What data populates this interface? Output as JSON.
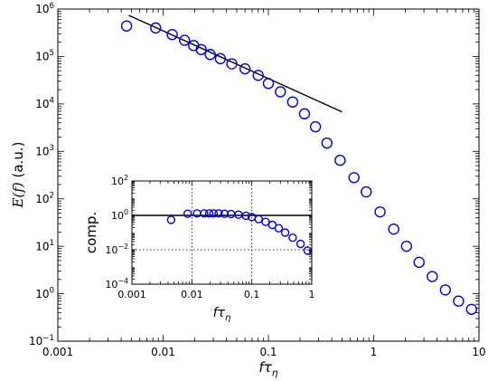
{
  "chart_data": [
    {
      "type": "scatter",
      "scale": {
        "x": "log",
        "y": "log"
      },
      "xlabel_math": {
        "base": "fτ",
        "sub": "η"
      },
      "ylabel": {
        "left": "E(f)",
        "right": " (a.u.)"
      },
      "xlim": [
        0.001,
        10
      ],
      "ylim": [
        0.1,
        1000000
      ],
      "xticks": [
        {
          "value": 0.001,
          "label": "0.001"
        },
        {
          "value": 0.01,
          "label": "0.01"
        },
        {
          "value": 0.1,
          "label": "0.1"
        },
        {
          "value": 1,
          "label": "1"
        },
        {
          "value": 10,
          "label": "10"
        }
      ],
      "yticks": [
        {
          "value": 0.1,
          "base": "10",
          "exp": "−1"
        },
        {
          "value": 1,
          "base": "10",
          "exp": "0"
        },
        {
          "value": 10,
          "base": "10",
          "exp": "1"
        },
        {
          "value": 100,
          "base": "10",
          "exp": "2"
        },
        {
          "value": 1000,
          "base": "10",
          "exp": "3"
        },
        {
          "value": 10000,
          "base": "10",
          "exp": "4"
        },
        {
          "value": 100000,
          "base": "10",
          "exp": "5"
        },
        {
          "value": 1000000,
          "base": "10",
          "exp": "6"
        }
      ],
      "series": [
        {
          "marker": "open-circle",
          "color": "#0000dd",
          "x": [
            0.0045,
            0.0085,
            0.0122,
            0.016,
            0.0195,
            0.023,
            0.028,
            0.035,
            0.045,
            0.06,
            0.08,
            0.1,
            0.13,
            0.17,
            0.22,
            0.28,
            0.36,
            0.48,
            0.65,
            0.85,
            1.15,
            1.55,
            2.05,
            2.7,
            3.6,
            4.8,
            6.4,
            8.5
          ],
          "y": [
            440000,
            400000,
            290000,
            220000,
            170000,
            140000,
            110000,
            90000,
            70000,
            55000,
            40000,
            27000,
            18000,
            11000,
            6200,
            3300,
            1500,
            650,
            280,
            140,
            53,
            23,
            10,
            4.6,
            2.3,
            1.2,
            0.7,
            0.47
          ]
        }
      ],
      "reference_line": {
        "x": [
          0.0047,
          0.5
        ],
        "y": [
          740000,
          6800
        ]
      }
    },
    {
      "type": "scatter",
      "scale": {
        "x": "log",
        "y": "log"
      },
      "xlabel_math": {
        "base": "fτ",
        "sub": "η"
      },
      "ylabel": "comp.",
      "xlim": [
        0.001,
        1
      ],
      "ylim": [
        0.0001,
        100
      ],
      "grid": "dotted at 0.01, 0.1 and 0.01",
      "xticks": [
        {
          "value": 0.001,
          "label": "0.001"
        },
        {
          "value": 0.01,
          "label": "0.01"
        },
        {
          "value": 0.1,
          "label": "0.1"
        },
        {
          "value": 1,
          "label": "1"
        }
      ],
      "yticks": [
        {
          "value": 0.0001,
          "base": "10",
          "exp": "−4"
        },
        {
          "value": 0.01,
          "base": "10",
          "exp": "−2"
        },
        {
          "value": 1,
          "base": "10",
          "exp": "0"
        },
        {
          "value": 100,
          "base": "10",
          "exp": "2"
        }
      ],
      "series": [
        {
          "marker": "open-circle",
          "color": "#0000dd",
          "x": [
            0.0045,
            0.0085,
            0.0122,
            0.016,
            0.0195,
            0.023,
            0.028,
            0.035,
            0.045,
            0.06,
            0.08,
            0.1,
            0.13,
            0.17,
            0.22,
            0.28,
            0.36,
            0.48,
            0.65,
            0.85
          ],
          "y": [
            0.55,
            1.25,
            1.3,
            1.3,
            1.3,
            1.3,
            1.3,
            1.25,
            1.2,
            1.1,
            0.95,
            0.8,
            0.6,
            0.42,
            0.28,
            0.18,
            0.1,
            0.05,
            0.022,
            0.009
          ]
        }
      ],
      "reference_line": {
        "x": [
          0.001,
          1
        ],
        "y": [
          1,
          1
        ]
      }
    }
  ]
}
